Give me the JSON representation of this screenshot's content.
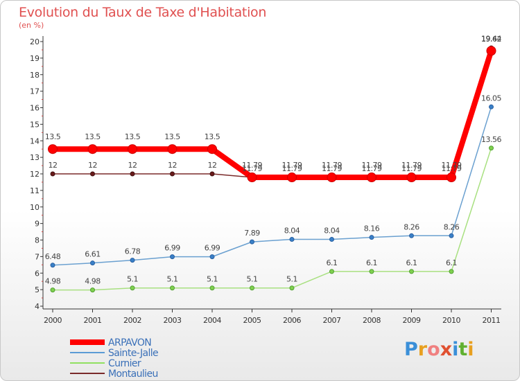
{
  "chart_data": {
    "type": "line",
    "title": "Evolution du Taux de Taxe d'Habitation",
    "subtitle": "(en %)",
    "x": [
      "2000",
      "2001",
      "2002",
      "2003",
      "2004",
      "2005",
      "2006",
      "2007",
      "2008",
      "2009",
      "2010",
      "2011"
    ],
    "y_ticks": [
      "4",
      "5",
      "6",
      "7",
      "8",
      "9",
      "10",
      "11",
      "12",
      "13",
      "14",
      "15",
      "16",
      "17",
      "18",
      "19",
      "20"
    ],
    "ylim": [
      4,
      20
    ],
    "grid": false,
    "legend_position": "bottom-left",
    "series": [
      {
        "name": "ARPAVON",
        "color": "#ff0000",
        "values": [
          13.5,
          13.5,
          13.5,
          13.5,
          13.5,
          11.79,
          11.79,
          11.79,
          11.79,
          11.79,
          11.79,
          19.44
        ],
        "labels": [
          "13.5",
          "13.5",
          "13.5",
          "13.5",
          "13.5",
          "11.79",
          "11.79",
          "11.79",
          "11.79",
          "11.79",
          "11.79",
          "19.44"
        ]
      },
      {
        "name": "Sainte-Jalle",
        "color": "#5b9bd5",
        "values": [
          6.48,
          6.61,
          6.78,
          6.99,
          6.99,
          7.89,
          8.04,
          8.04,
          8.16,
          8.26,
          8.26,
          16.05
        ],
        "labels": [
          "6.48",
          "6.61",
          "6.78",
          "6.99",
          "6.99",
          "7.89",
          "8.04",
          "8.04",
          "8.16",
          "8.26",
          "8.26",
          "16.05"
        ]
      },
      {
        "name": "Curnier",
        "color": "#90e060",
        "values": [
          4.98,
          4.98,
          5.1,
          5.1,
          5.1,
          5.1,
          5.1,
          6.1,
          6.1,
          6.1,
          6.1,
          13.56
        ],
        "labels": [
          "4.98",
          "4.98",
          "5.1",
          "5.1",
          "5.1",
          "5.1",
          "5.1",
          "6.1",
          "6.1",
          "6.1",
          "6.1",
          "13.56"
        ]
      },
      {
        "name": "Montaulieu",
        "color": "#7a2a2a",
        "values": [
          12,
          12,
          12,
          12,
          12,
          11.79,
          11.79,
          11.79,
          11.79,
          11.79,
          11.79,
          19.62
        ],
        "labels": [
          "12",
          "12",
          "12",
          "12",
          "12",
          "11.79",
          "11.79",
          "11.79",
          "11.79",
          "11.79",
          "11.79",
          "19.62"
        ]
      }
    ]
  },
  "logo": {
    "letters": [
      "P",
      "r",
      "o",
      "x",
      "i",
      "t",
      "i"
    ],
    "colors": [
      "#3a8fd8",
      "#e8a020",
      "#f08080",
      "#e05030",
      "#3a8fd8",
      "#60b030",
      "#e8a020"
    ]
  }
}
